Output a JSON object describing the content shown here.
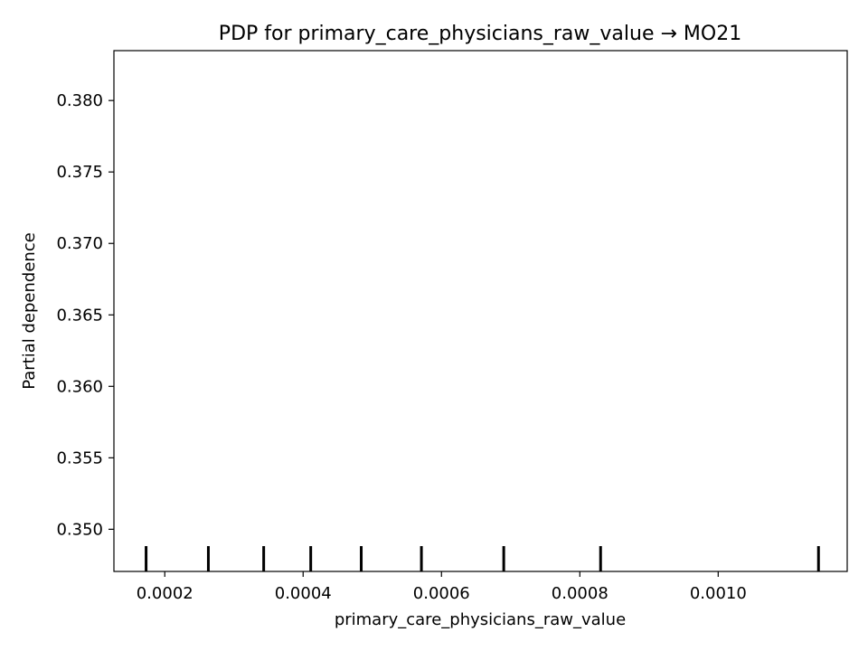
{
  "chart_data": {
    "type": "line",
    "title": "PDP for primary_care_physicians_raw_value → MO21",
    "xlabel": "primary_care_physicians_raw_value",
    "ylabel": "Partial dependence",
    "xlim": [
      0.0001265,
      0.0011865
    ],
    "ylim": [
      0.34705,
      0.38349
    ],
    "xticks": [
      0.0002,
      0.0004,
      0.0006,
      0.0008,
      0.001
    ],
    "xtick_labels": [
      "0.0002",
      "0.0004",
      "0.0006",
      "0.0008",
      "0.0010"
    ],
    "yticks": [
      0.35,
      0.355,
      0.36,
      0.365,
      0.37,
      0.375,
      0.38
    ],
    "ytick_labels": [
      "0.350",
      "0.355",
      "0.360",
      "0.365",
      "0.370",
      "0.375",
      "0.380"
    ],
    "deciles": [
      0.000173,
      0.000263,
      0.000343,
      0.000411,
      0.000484,
      0.000571,
      0.00069,
      0.00083,
      0.001145
    ],
    "series": [],
    "grid": false,
    "legend": "none"
  }
}
